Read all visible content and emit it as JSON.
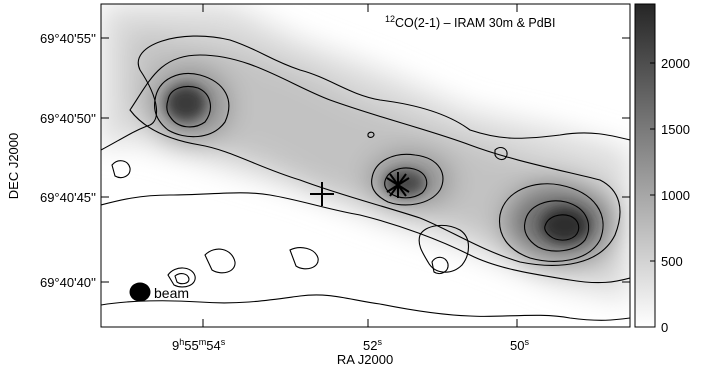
{
  "map": {
    "title_sup": "12",
    "title_main": "CO(2-1) – IRAM 30m & PdBI",
    "beam_label": "beam",
    "xlabel": "RA J2000",
    "ylabel": "DEC J2000",
    "x_ticks": [
      {
        "h": "9",
        "m": "55",
        "s": "54",
        "sup_h": "h",
        "sup_m": "m",
        "sup_s": "s"
      },
      {
        "text": "52",
        "sup": "s"
      },
      {
        "text": "50",
        "sup": "s"
      }
    ],
    "y_ticks": [
      "69°40'55''",
      "69°40'50''",
      "69°40'45''",
      "69°40'40''"
    ],
    "colorbar": {
      "ticks": [
        "0",
        "500",
        "1000",
        "1500",
        "2000"
      ],
      "range": [
        0,
        2450
      ],
      "colors": {
        "low": "#ffffff",
        "high": "#2a2a2a"
      }
    },
    "markers": {
      "cross": "plus-marker",
      "star": "asterisk-marker"
    }
  }
}
